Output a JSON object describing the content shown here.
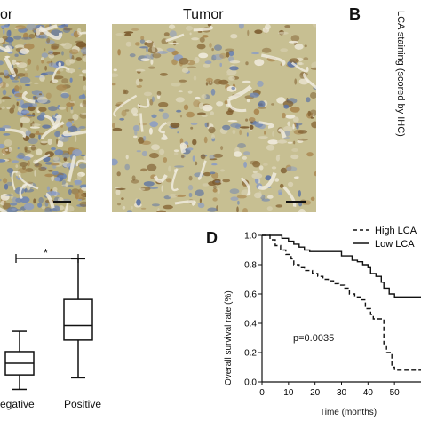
{
  "panel_a": {
    "left_title_fragment": "or",
    "right_title": "Tumor"
  },
  "panel_b": {
    "letter": "B",
    "ylabel": "LCA staining (scored by IHC)"
  },
  "panel_c": {
    "significance": "*",
    "categories": [
      "egative",
      "Positive"
    ]
  },
  "panel_d": {
    "letter": "D",
    "pvalue": "p=0.0035"
  },
  "chart_data": [
    {
      "type": "box",
      "categories": [
        "egative",
        "Positive"
      ],
      "series": [
        {
          "category": "egative",
          "whisker_low": 0.1,
          "q1": 0.35,
          "median": 0.55,
          "q3": 0.75,
          "whisker_high": 1.1
        },
        {
          "category": "Positive",
          "whisker_low": 0.3,
          "q1": 0.95,
          "median": 1.2,
          "q3": 1.65,
          "whisker_high": 2.35
        }
      ],
      "annotation": "*"
    },
    {
      "type": "line",
      "xlabel": "Time (months)",
      "ylabel": "Overall survival rate (%)",
      "xlim": [
        0,
        60
      ],
      "ylim": [
        0,
        1.0
      ],
      "xticks": [
        0,
        10,
        20,
        30,
        40,
        50
      ],
      "yticks": [
        0,
        0.2,
        0.4,
        0.6,
        0.8,
        1.0
      ],
      "legend_position": "top-right",
      "series": [
        {
          "name": "High LCA",
          "style": "dashed",
          "steps": [
            [
              0,
              1.0
            ],
            [
              3,
              0.97
            ],
            [
              5,
              0.93
            ],
            [
              7,
              0.9
            ],
            [
              9,
              0.87
            ],
            [
              11,
              0.84
            ],
            [
              12,
              0.8
            ],
            [
              14,
              0.78
            ],
            [
              16,
              0.76
            ],
            [
              19,
              0.74
            ],
            [
              21,
              0.72
            ],
            [
              23,
              0.7
            ],
            [
              25,
              0.69
            ],
            [
              27,
              0.67
            ],
            [
              29,
              0.66
            ],
            [
              31,
              0.64
            ],
            [
              33,
              0.6
            ],
            [
              35,
              0.58
            ],
            [
              37,
              0.56
            ],
            [
              39,
              0.5
            ],
            [
              41,
              0.46
            ],
            [
              42,
              0.43
            ],
            [
              45,
              0.43
            ],
            [
              46,
              0.26
            ],
            [
              47,
              0.2
            ],
            [
              49,
              0.1
            ],
            [
              50,
              0.08
            ],
            [
              60,
              0.08
            ]
          ]
        },
        {
          "name": "Low LCA",
          "style": "solid",
          "steps": [
            [
              0,
              1.0
            ],
            [
              7,
              1.0
            ],
            [
              7.5,
              0.98
            ],
            [
              10,
              0.96
            ],
            [
              12,
              0.94
            ],
            [
              14,
              0.92
            ],
            [
              16,
              0.9
            ],
            [
              18,
              0.89
            ],
            [
              28,
              0.89
            ],
            [
              30,
              0.86
            ],
            [
              34,
              0.83
            ],
            [
              36,
              0.82
            ],
            [
              38,
              0.8
            ],
            [
              40,
              0.78
            ],
            [
              41,
              0.74
            ],
            [
              43,
              0.72
            ],
            [
              45,
              0.68
            ],
            [
              46,
              0.64
            ],
            [
              48,
              0.6
            ],
            [
              50,
              0.58
            ],
            [
              60,
              0.58
            ]
          ]
        }
      ]
    }
  ]
}
